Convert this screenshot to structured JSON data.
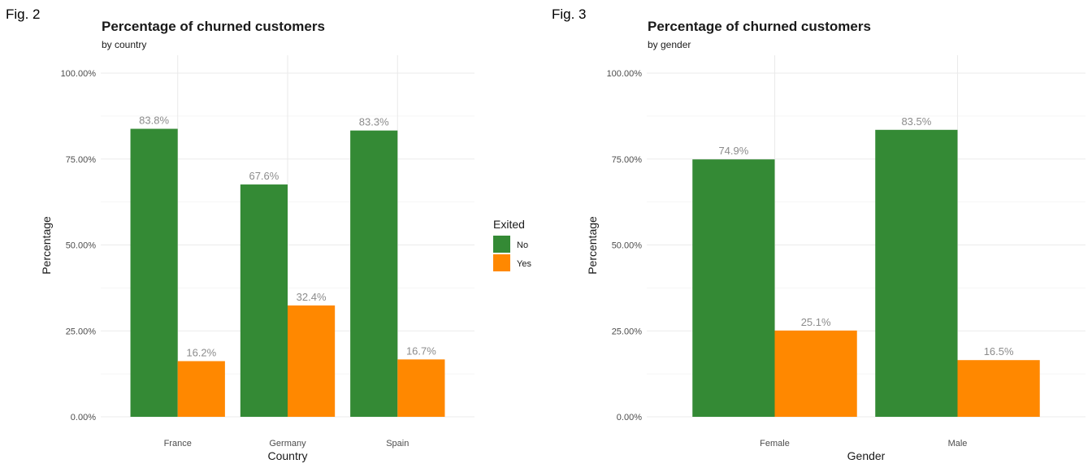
{
  "colors": {
    "No": "#348a35",
    "Yes": "#ff8800"
  },
  "legend": {
    "title": "Exited",
    "items": [
      {
        "key": "No",
        "label": "No"
      },
      {
        "key": "Yes",
        "label": "Yes"
      }
    ]
  },
  "chart_data": [
    {
      "fig_label": "Fig. 2",
      "type": "bar",
      "title": "Percentage of churned customers",
      "subtitle": "by country",
      "xlabel": "Country",
      "ylabel": "Percentage",
      "ylim": [
        0,
        100
      ],
      "yticks": [
        0,
        25,
        50,
        75,
        100
      ],
      "ytick_labels": [
        "0.00%",
        "25.00%",
        "50.00%",
        "75.00%",
        "100.00%"
      ],
      "grid": true,
      "legend_position": "right",
      "categories": [
        "France",
        "Germany",
        "Spain"
      ],
      "series": [
        {
          "name": "No",
          "values": [
            83.8,
            67.6,
            83.3
          ],
          "labels": [
            "83.8%",
            "67.6%",
            "83.3%"
          ]
        },
        {
          "name": "Yes",
          "values": [
            16.2,
            32.4,
            16.7
          ],
          "labels": [
            "16.2%",
            "32.4%",
            "16.7%"
          ]
        }
      ]
    },
    {
      "fig_label": "Fig. 3",
      "type": "bar",
      "title": "Percentage of churned customers",
      "subtitle": "by gender",
      "xlabel": "Gender",
      "ylabel": "Percentage",
      "ylim": [
        0,
        100
      ],
      "yticks": [
        0,
        25,
        50,
        75,
        100
      ],
      "ytick_labels": [
        "0.00%",
        "25.00%",
        "50.00%",
        "75.00%",
        "100.00%"
      ],
      "grid": true,
      "categories": [
        "Female",
        "Male"
      ],
      "series": [
        {
          "name": "No",
          "values": [
            74.9,
            83.5
          ],
          "labels": [
            "74.9%",
            "83.5%"
          ]
        },
        {
          "name": "Yes",
          "values": [
            25.1,
            16.5
          ],
          "labels": [
            "25.1%",
            "16.5%"
          ]
        }
      ]
    }
  ]
}
